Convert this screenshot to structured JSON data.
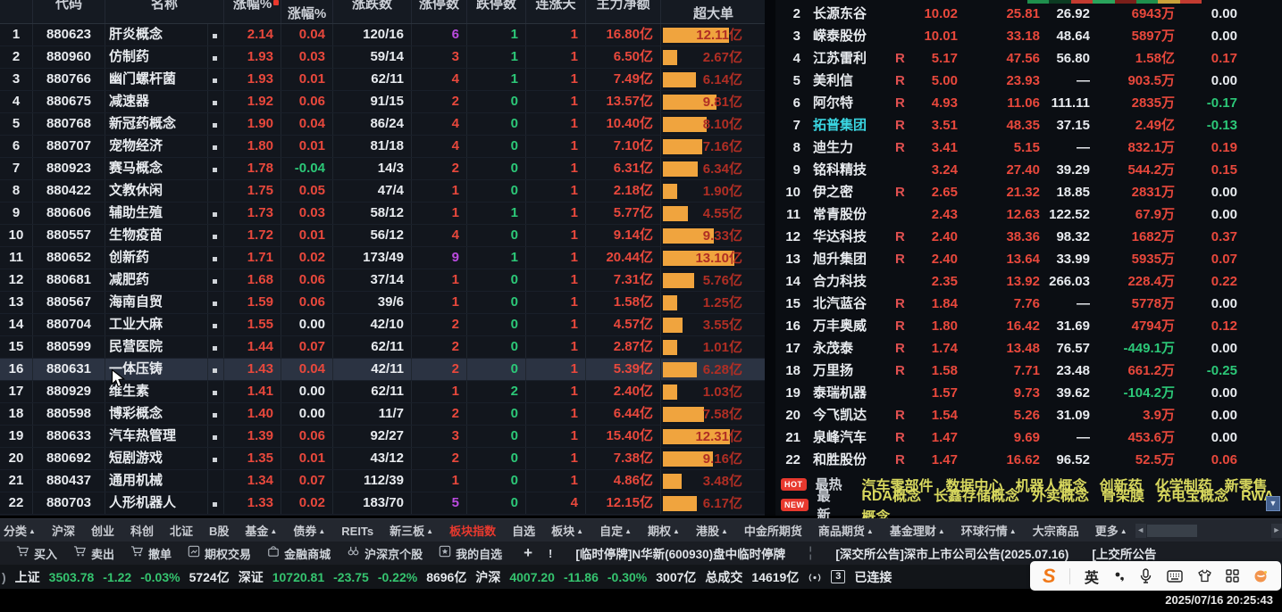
{
  "window": {
    "timestamp": "2025/07/16 20:25:43"
  },
  "colors": {
    "red": "#e8483c",
    "green": "#2cc878",
    "white": "#e8ebef",
    "purple": "#bb4be0",
    "orange": "#f0a43e",
    "yellow": "#d8d85e",
    "cyan": "#3ad6e2",
    "accent_red": "#e8392e"
  },
  "left_table": {
    "headers": [
      {
        "label": "代码",
        "clipped": true
      },
      {
        "label": "名称",
        "clipped": true,
        "span2": true
      },
      {
        "label": "涨幅%",
        "clipped": true,
        "sort": true
      },
      {
        "label": "涨幅%",
        "clipped": false
      },
      {
        "label": "涨跌数",
        "clipped": true
      },
      {
        "label": "涨停数",
        "clipped": true
      },
      {
        "label": "跌停数",
        "clipped": true
      },
      {
        "label": "连涨天",
        "clipped": true
      },
      {
        "label": "主力净额",
        "clipped": true
      },
      {
        "label": "超大单",
        "clipped": false
      }
    ],
    "rows": [
      {
        "rank": 1,
        "code": "880623",
        "name": "肝炎概念",
        "marker": true,
        "chg": "2.14",
        "pct": "0.04",
        "pct_color": "red",
        "ud": "120/16",
        "lu": "6",
        "lu_color": "purple",
        "ld": "1",
        "days": "1",
        "main": "16.80亿",
        "bar": "12.11亿"
      },
      {
        "rank": 2,
        "code": "880960",
        "name": "仿制药",
        "marker": true,
        "chg": "1.93",
        "pct": "0.03",
        "pct_color": "red",
        "ud": "59/14",
        "lu": "3",
        "lu_color": "red",
        "ld": "1",
        "days": "1",
        "main": "6.50亿",
        "bar": "2.67亿"
      },
      {
        "rank": 3,
        "code": "880766",
        "name": "幽门螺杆菌",
        "marker": true,
        "chg": "1.93",
        "pct": "0.01",
        "pct_color": "red",
        "ud": "62/11",
        "lu": "4",
        "lu_color": "red",
        "ld": "1",
        "days": "1",
        "main": "7.49亿",
        "bar": "6.14亿"
      },
      {
        "rank": 4,
        "code": "880675",
        "name": "减速器",
        "marker": true,
        "chg": "1.92",
        "pct": "0.06",
        "pct_color": "red",
        "ud": "91/15",
        "lu": "2",
        "lu_color": "red",
        "ld": "0",
        "days": "1",
        "main": "13.57亿",
        "bar": "9.81亿"
      },
      {
        "rank": 5,
        "code": "880768",
        "name": "新冠药概念",
        "marker": true,
        "chg": "1.90",
        "pct": "0.04",
        "pct_color": "red",
        "ud": "86/24",
        "lu": "4",
        "lu_color": "red",
        "ld": "0",
        "days": "1",
        "main": "10.40亿",
        "bar": "8.10亿"
      },
      {
        "rank": 6,
        "code": "880707",
        "name": "宠物经济",
        "marker": true,
        "chg": "1.80",
        "pct": "0.01",
        "pct_color": "red",
        "ud": "81/18",
        "lu": "4",
        "lu_color": "red",
        "ld": "0",
        "days": "1",
        "main": "7.10亿",
        "bar": "7.16亿"
      },
      {
        "rank": 7,
        "code": "880923",
        "name": "赛马概念",
        "marker": true,
        "chg": "1.78",
        "pct": "-0.04",
        "pct_color": "green",
        "ud": "14/3",
        "lu": "2",
        "lu_color": "red",
        "ld": "0",
        "days": "1",
        "main": "6.31亿",
        "bar": "6.34亿"
      },
      {
        "rank": 8,
        "code": "880422",
        "name": "文教休闲",
        "marker": false,
        "chg": "1.75",
        "pct": "0.05",
        "pct_color": "red",
        "ud": "47/4",
        "lu": "1",
        "lu_color": "red",
        "ld": "0",
        "days": "1",
        "main": "2.18亿",
        "bar": "1.90亿"
      },
      {
        "rank": 9,
        "code": "880606",
        "name": "辅助生殖",
        "marker": true,
        "chg": "1.73",
        "pct": "0.03",
        "pct_color": "red",
        "ud": "58/12",
        "lu": "1",
        "lu_color": "red",
        "ld": "1",
        "days": "1",
        "main": "5.77亿",
        "bar": "4.55亿"
      },
      {
        "rank": 10,
        "code": "880557",
        "name": "生物疫苗",
        "marker": true,
        "chg": "1.72",
        "pct": "0.01",
        "pct_color": "red",
        "ud": "56/12",
        "lu": "4",
        "lu_color": "red",
        "ld": "0",
        "days": "1",
        "main": "9.14亿",
        "bar": "9.33亿"
      },
      {
        "rank": 11,
        "code": "880652",
        "name": "创新药",
        "marker": true,
        "chg": "1.71",
        "pct": "0.02",
        "pct_color": "red",
        "ud": "173/49",
        "lu": "9",
        "lu_color": "purple",
        "ld": "1",
        "days": "1",
        "main": "20.44亿",
        "bar": "13.10亿"
      },
      {
        "rank": 12,
        "code": "880681",
        "name": "减肥药",
        "marker": true,
        "chg": "1.68",
        "pct": "0.06",
        "pct_color": "red",
        "ud": "37/14",
        "lu": "1",
        "lu_color": "red",
        "ld": "0",
        "days": "1",
        "main": "7.31亿",
        "bar": "5.76亿"
      },
      {
        "rank": 13,
        "code": "880567",
        "name": "海南自贸",
        "marker": true,
        "chg": "1.59",
        "pct": "0.06",
        "pct_color": "red",
        "ud": "39/6",
        "lu": "1",
        "lu_color": "red",
        "ld": "0",
        "days": "1",
        "main": "1.58亿",
        "bar": "1.25亿"
      },
      {
        "rank": 14,
        "code": "880704",
        "name": "工业大麻",
        "marker": true,
        "chg": "1.55",
        "pct": "0.00",
        "pct_color": "white",
        "ud": "42/10",
        "lu": "2",
        "lu_color": "red",
        "ld": "0",
        "days": "1",
        "main": "4.57亿",
        "bar": "3.55亿"
      },
      {
        "rank": 15,
        "code": "880599",
        "name": "民营医院",
        "marker": true,
        "chg": "1.44",
        "pct": "0.07",
        "pct_color": "red",
        "ud": "62/11",
        "lu": "2",
        "lu_color": "red",
        "ld": "0",
        "days": "1",
        "main": "2.87亿",
        "bar": "1.01亿"
      },
      {
        "rank": 16,
        "code": "880631",
        "name": "一体压铸",
        "marker": true,
        "chg": "1.43",
        "pct": "0.04",
        "pct_color": "red",
        "ud": "42/11",
        "lu": "2",
        "lu_color": "red",
        "ld": "0",
        "days": "1",
        "main": "5.39亿",
        "bar": "6.28亿",
        "highlight": true
      },
      {
        "rank": 17,
        "code": "880929",
        "name": "维生素",
        "marker": true,
        "chg": "1.41",
        "pct": "0.00",
        "pct_color": "white",
        "ud": "62/11",
        "lu": "1",
        "lu_color": "red",
        "ld": "2",
        "days": "1",
        "main": "2.40亿",
        "bar": "1.03亿"
      },
      {
        "rank": 18,
        "code": "880598",
        "name": "博彩概念",
        "marker": true,
        "chg": "1.40",
        "pct": "0.00",
        "pct_color": "white",
        "ud": "11/7",
        "lu": "2",
        "lu_color": "red",
        "ld": "0",
        "days": "1",
        "main": "6.44亿",
        "bar": "7.58亿"
      },
      {
        "rank": 19,
        "code": "880633",
        "name": "汽车热管理",
        "marker": true,
        "chg": "1.39",
        "pct": "0.06",
        "pct_color": "red",
        "ud": "92/27",
        "lu": "3",
        "lu_color": "red",
        "ld": "0",
        "days": "1",
        "main": "15.40亿",
        "bar": "12.31亿"
      },
      {
        "rank": 20,
        "code": "880692",
        "name": "短剧游戏",
        "marker": true,
        "chg": "1.35",
        "pct": "0.01",
        "pct_color": "red",
        "ud": "43/12",
        "lu": "2",
        "lu_color": "red",
        "ld": "0",
        "days": "1",
        "main": "7.38亿",
        "bar": "9.16亿"
      },
      {
        "rank": 21,
        "code": "880437",
        "name": "通用机械",
        "marker": false,
        "chg": "1.34",
        "pct": "0.07",
        "pct_color": "red",
        "ud": "112/39",
        "lu": "1",
        "lu_color": "red",
        "ld": "0",
        "days": "1",
        "main": "4.86亿",
        "bar": "3.48亿"
      },
      {
        "rank": 22,
        "code": "880703",
        "name": "人形机器人",
        "marker": true,
        "chg": "1.33",
        "pct": "0.02",
        "pct_color": "red",
        "ud": "183/70",
        "lu": "5",
        "lu_color": "purple",
        "ld": "0",
        "days": "4",
        "main": "12.15亿",
        "bar": "6.17亿"
      }
    ]
  },
  "right_table": {
    "rows": [
      {
        "rank": 2,
        "name": "长源东谷",
        "name_color": "white",
        "r": false,
        "v1": "10.02",
        "v2": "25.81",
        "v3": "26.92",
        "v4": "6943万",
        "v4_color": "red",
        "v5": "0.00",
        "v5_color": "white"
      },
      {
        "rank": 3,
        "name": "嵘泰股份",
        "name_color": "white",
        "r": false,
        "v1": "10.01",
        "v2": "33.18",
        "v3": "48.64",
        "v4": "5897万",
        "v4_color": "red",
        "v5": "0.00",
        "v5_color": "white"
      },
      {
        "rank": 4,
        "name": "江苏雷利",
        "name_color": "white",
        "r": true,
        "v1": "5.17",
        "v2": "47.56",
        "v3": "56.80",
        "v4": "1.58亿",
        "v4_color": "red",
        "v5": "0.17",
        "v5_color": "red"
      },
      {
        "rank": 5,
        "name": "美利信",
        "name_color": "white",
        "r": true,
        "v1": "5.00",
        "v2": "23.93",
        "v3": "—",
        "v4": "903.5万",
        "v4_color": "red",
        "v5": "0.00",
        "v5_color": "white"
      },
      {
        "rank": 6,
        "name": "阿尔特",
        "name_color": "white",
        "r": true,
        "v1": "4.93",
        "v2": "11.06",
        "v3": "111.11",
        "v4": "2835万",
        "v4_color": "red",
        "v5": "-0.17",
        "v5_color": "green"
      },
      {
        "rank": 7,
        "name": "拓普集团",
        "name_color": "cyan",
        "r": true,
        "v1": "3.51",
        "v2": "48.35",
        "v3": "37.15",
        "v4": "2.49亿",
        "v4_color": "red",
        "v5": "-0.13",
        "v5_color": "green"
      },
      {
        "rank": 8,
        "name": "迪生力",
        "name_color": "white",
        "r": true,
        "v1": "3.41",
        "v2": "5.15",
        "v3": "—",
        "v4": "832.1万",
        "v4_color": "red",
        "v5": "0.19",
        "v5_color": "red"
      },
      {
        "rank": 9,
        "name": "铭科精技",
        "name_color": "white",
        "r": false,
        "v1": "3.24",
        "v2": "27.40",
        "v3": "39.29",
        "v4": "544.2万",
        "v4_color": "red",
        "v5": "0.15",
        "v5_color": "red"
      },
      {
        "rank": 10,
        "name": "伊之密",
        "name_color": "white",
        "r": true,
        "v1": "2.65",
        "v2": "21.32",
        "v3": "18.85",
        "v4": "2831万",
        "v4_color": "red",
        "v5": "0.00",
        "v5_color": "white"
      },
      {
        "rank": 11,
        "name": "常青股份",
        "name_color": "white",
        "r": false,
        "v1": "2.43",
        "v2": "12.63",
        "v3": "122.52",
        "v4": "67.9万",
        "v4_color": "red",
        "v5": "0.00",
        "v5_color": "white"
      },
      {
        "rank": 12,
        "name": "华达科技",
        "name_color": "white",
        "r": true,
        "v1": "2.40",
        "v2": "38.36",
        "v3": "98.32",
        "v4": "1682万",
        "v4_color": "red",
        "v5": "0.37",
        "v5_color": "red"
      },
      {
        "rank": 13,
        "name": "旭升集团",
        "name_color": "white",
        "r": true,
        "v1": "2.40",
        "v2": "13.64",
        "v3": "33.99",
        "v4": "5935万",
        "v4_color": "red",
        "v5": "0.07",
        "v5_color": "red"
      },
      {
        "rank": 14,
        "name": "合力科技",
        "name_color": "white",
        "r": false,
        "v1": "2.35",
        "v2": "13.92",
        "v3": "266.03",
        "v4": "228.4万",
        "v4_color": "red",
        "v5": "0.22",
        "v5_color": "red"
      },
      {
        "rank": 15,
        "name": "北汽蓝谷",
        "name_color": "white",
        "r": true,
        "v1": "1.84",
        "v2": "7.76",
        "v3": "—",
        "v4": "5778万",
        "v4_color": "red",
        "v5": "0.00",
        "v5_color": "white"
      },
      {
        "rank": 16,
        "name": "万丰奥威",
        "name_color": "white",
        "r": true,
        "v1": "1.80",
        "v2": "16.42",
        "v3": "31.69",
        "v4": "4794万",
        "v4_color": "red",
        "v5": "0.12",
        "v5_color": "red"
      },
      {
        "rank": 17,
        "name": "永茂泰",
        "name_color": "white",
        "r": true,
        "v1": "1.74",
        "v2": "13.48",
        "v3": "76.57",
        "v4": "-449.1万",
        "v4_color": "green",
        "v5": "0.00",
        "v5_color": "white"
      },
      {
        "rank": 18,
        "name": "万里扬",
        "name_color": "white",
        "r": true,
        "v1": "1.58",
        "v2": "7.71",
        "v3": "23.48",
        "v4": "661.2万",
        "v4_color": "red",
        "v5": "-0.25",
        "v5_color": "green"
      },
      {
        "rank": 19,
        "name": "泰瑞机器",
        "name_color": "white",
        "r": false,
        "v1": "1.57",
        "v2": "9.73",
        "v3": "39.62",
        "v4": "-104.2万",
        "v4_color": "green",
        "v5": "0.00",
        "v5_color": "white"
      },
      {
        "rank": 20,
        "name": "今飞凯达",
        "name_color": "white",
        "r": true,
        "v1": "1.54",
        "v2": "5.26",
        "v3": "31.09",
        "v4": "3.9万",
        "v4_color": "red",
        "v5": "0.00",
        "v5_color": "white"
      },
      {
        "rank": 21,
        "name": "泉峰汽车",
        "name_color": "white",
        "r": true,
        "v1": "1.47",
        "v2": "9.69",
        "v3": "—",
        "v4": "453.6万",
        "v4_color": "red",
        "v5": "0.00",
        "v5_color": "white"
      },
      {
        "rank": 22,
        "name": "和胜股份",
        "name_color": "white",
        "r": true,
        "v1": "1.47",
        "v2": "16.62",
        "v3": "96.52",
        "v4": "52.5万",
        "v4_color": "red",
        "v5": "0.06",
        "v5_color": "red"
      }
    ]
  },
  "hot_section": {
    "hot_badge": "HOT",
    "hot_label": "最热",
    "hot_items": [
      "汽车零部件",
      "数据中心",
      "机器人概念",
      "创新药",
      "化学制药",
      "新零售"
    ],
    "new_badge": "NEW",
    "new_label": "最新",
    "new_items": [
      "RDA概念",
      "长鑫存储概念",
      "外卖概念",
      "骨架膜",
      "充电宝概念",
      "RWA概念"
    ]
  },
  "tabs": [
    {
      "label": "分类",
      "arrow": true
    },
    {
      "label": "沪深"
    },
    {
      "label": "创业"
    },
    {
      "label": "科创"
    },
    {
      "label": "北证"
    },
    {
      "label": "B股"
    },
    {
      "label": "基金",
      "arrow": true
    },
    {
      "label": "债券",
      "arrow": true
    },
    {
      "label": "REITs"
    },
    {
      "label": "新三板",
      "arrow": true
    },
    {
      "label": "板块指数",
      "active": true
    },
    {
      "label": "自选"
    },
    {
      "label": "板块",
      "arrow": true
    },
    {
      "label": "自定",
      "arrow": true
    },
    {
      "label": "期权",
      "arrow": true
    },
    {
      "label": "港股",
      "arrow": true
    },
    {
      "label": "中金所期货"
    },
    {
      "label": "商品期货",
      "arrow": true
    },
    {
      "label": "基金理财",
      "arrow": true
    },
    {
      "label": "环球行情",
      "arrow": true
    },
    {
      "label": "大宗商品"
    },
    {
      "label": "更多",
      "arrow": true
    }
  ],
  "toolbar": {
    "items": [
      {
        "icon": "buy-cart-icon",
        "label": "买入"
      },
      {
        "icon": "sell-cart-icon",
        "label": "卖出"
      },
      {
        "icon": "cancel-order-icon",
        "label": "撤单"
      },
      {
        "icon": "option-trade-icon",
        "label": "期权交易"
      },
      {
        "icon": "finance-mall-icon",
        "label": "金融商城"
      },
      {
        "icon": "stock-search-icon",
        "label": "沪深京个股"
      },
      {
        "icon": "my-watchlist-icon",
        "label": "我的自选"
      }
    ],
    "add_label": "+",
    "alert_label": "!",
    "announcements": [
      "[临时停牌]N华新(600930)盘中临时停牌",
      "[深交所公告]深市上市公司公告(2025.07.16)",
      "[上交所公告"
    ]
  },
  "status_bar": {
    "indices": [
      {
        "label": "上证",
        "value": "3503.78",
        "change": "-1.22",
        "pct": "-0.03%",
        "amount": "5724亿"
      },
      {
        "label": "深证",
        "value": "10720.81",
        "change": "-23.75",
        "pct": "-0.22%",
        "amount": "8696亿"
      },
      {
        "label": "沪深",
        "value": "4007.20",
        "change": "-11.86",
        "pct": "-0.30%",
        "amount": "3007亿"
      }
    ],
    "total_label": "总成交",
    "total_amount": "14619亿",
    "connection_count": "3",
    "connection_status": "已连接"
  },
  "ime": {
    "logo": "S",
    "lang_label": "英"
  }
}
